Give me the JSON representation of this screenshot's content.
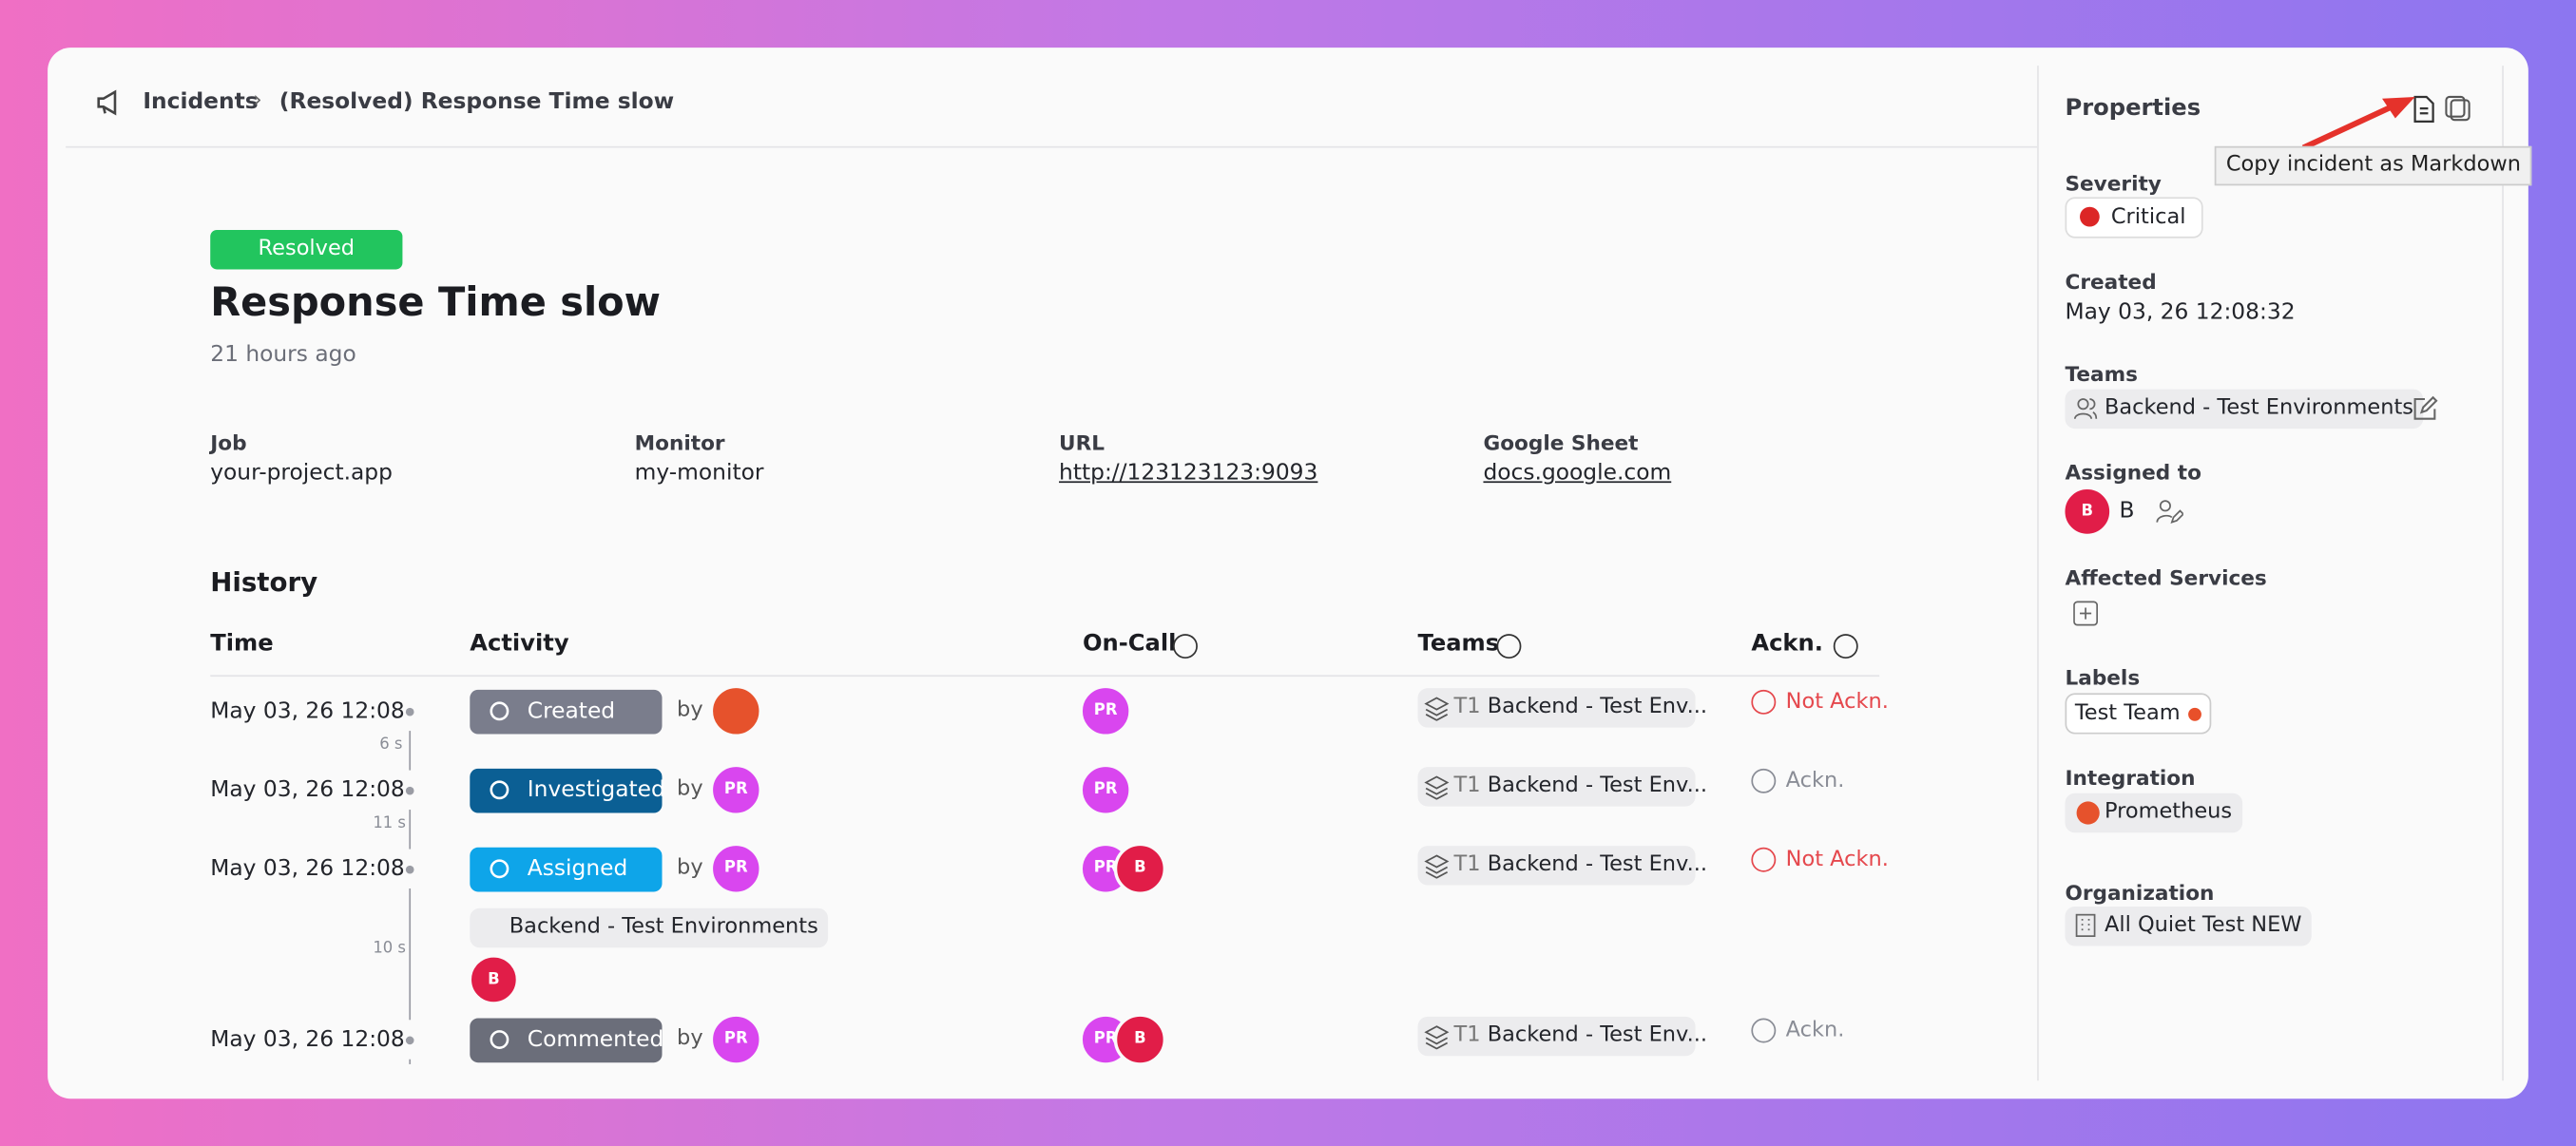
{
  "breadcrumb": {
    "root": "Incidents",
    "separator": "›",
    "current": "(Resolved) Response Time slow"
  },
  "incident": {
    "status": "Resolved",
    "title": "Response Time slow",
    "age": "21 hours ago",
    "fields": [
      {
        "label": "Job",
        "value": "your-project.app"
      },
      {
        "label": "Monitor",
        "value": "my-monitor"
      },
      {
        "label": "URL",
        "value": "http://123123123:9093"
      },
      {
        "label": "Google Sheet",
        "value": "docs.google.com"
      }
    ]
  },
  "history": {
    "title": "History",
    "columns": [
      "Time",
      "Activity",
      "On-Call",
      "Teams",
      "Ackn."
    ],
    "rows": [
      {
        "time": "May 03, 26 12:08",
        "activity": "Created",
        "activity_color": "#7a7d8c",
        "by": "by",
        "oncall": [
          "PR"
        ],
        "team_prefix": "T1",
        "team": "Backend - Test Env...",
        "ack": "Not Ackn.",
        "ack_color": "#e5484d",
        "gap_after": "6 s"
      },
      {
        "time": "May 03, 26 12:08",
        "activity": "Investigated",
        "activity_color": "#0b5f94",
        "by": "by",
        "actor": "PR",
        "oncall": [
          "PR"
        ],
        "team_prefix": "T1",
        "team": "Backend - Test Env...",
        "ack": "Ackn.",
        "ack_color": "#8a8d96",
        "gap_after": "11 s"
      },
      {
        "time": "May 03, 26 12:08",
        "activity": "Assigned",
        "activity_color": "#0ea5e9",
        "by": "by",
        "actor": "PR",
        "oncall": [
          "PR",
          "B"
        ],
        "team_prefix": "T1",
        "team": "Backend - Test Env...",
        "ack": "Not Ackn.",
        "ack_color": "#e5484d",
        "gap_after": "10 s",
        "detail": "Backend - Test Environments",
        "detail_avatar": "B"
      },
      {
        "time": "May 03, 26 12:08",
        "activity": "Commented",
        "activity_color": "#6b6e7a",
        "by": "by",
        "actor": "PR",
        "oncall": [
          "PR",
          "B"
        ],
        "team_prefix": "T1",
        "team": "Backend - Test Env...",
        "ack": "Ackn.",
        "ack_color": "#8a8d96"
      }
    ]
  },
  "properties": {
    "title": "Properties",
    "tooltip": "Copy incident as Markdown",
    "severity_label": "Severity",
    "severity": "Critical",
    "created_label": "Created",
    "created": "May 03, 26 12:08:32",
    "teams_label": "Teams",
    "team": "Backend - Test Environments",
    "assigned_label": "Assigned to",
    "assigned_avatar": "B",
    "assigned_name": "B",
    "services_label": "Affected Services",
    "labels_label": "Labels",
    "label": "Test Team",
    "integration_label": "Integration",
    "integration": "Prometheus",
    "organization_label": "Organization",
    "organization": "All Quiet Test NEW"
  }
}
